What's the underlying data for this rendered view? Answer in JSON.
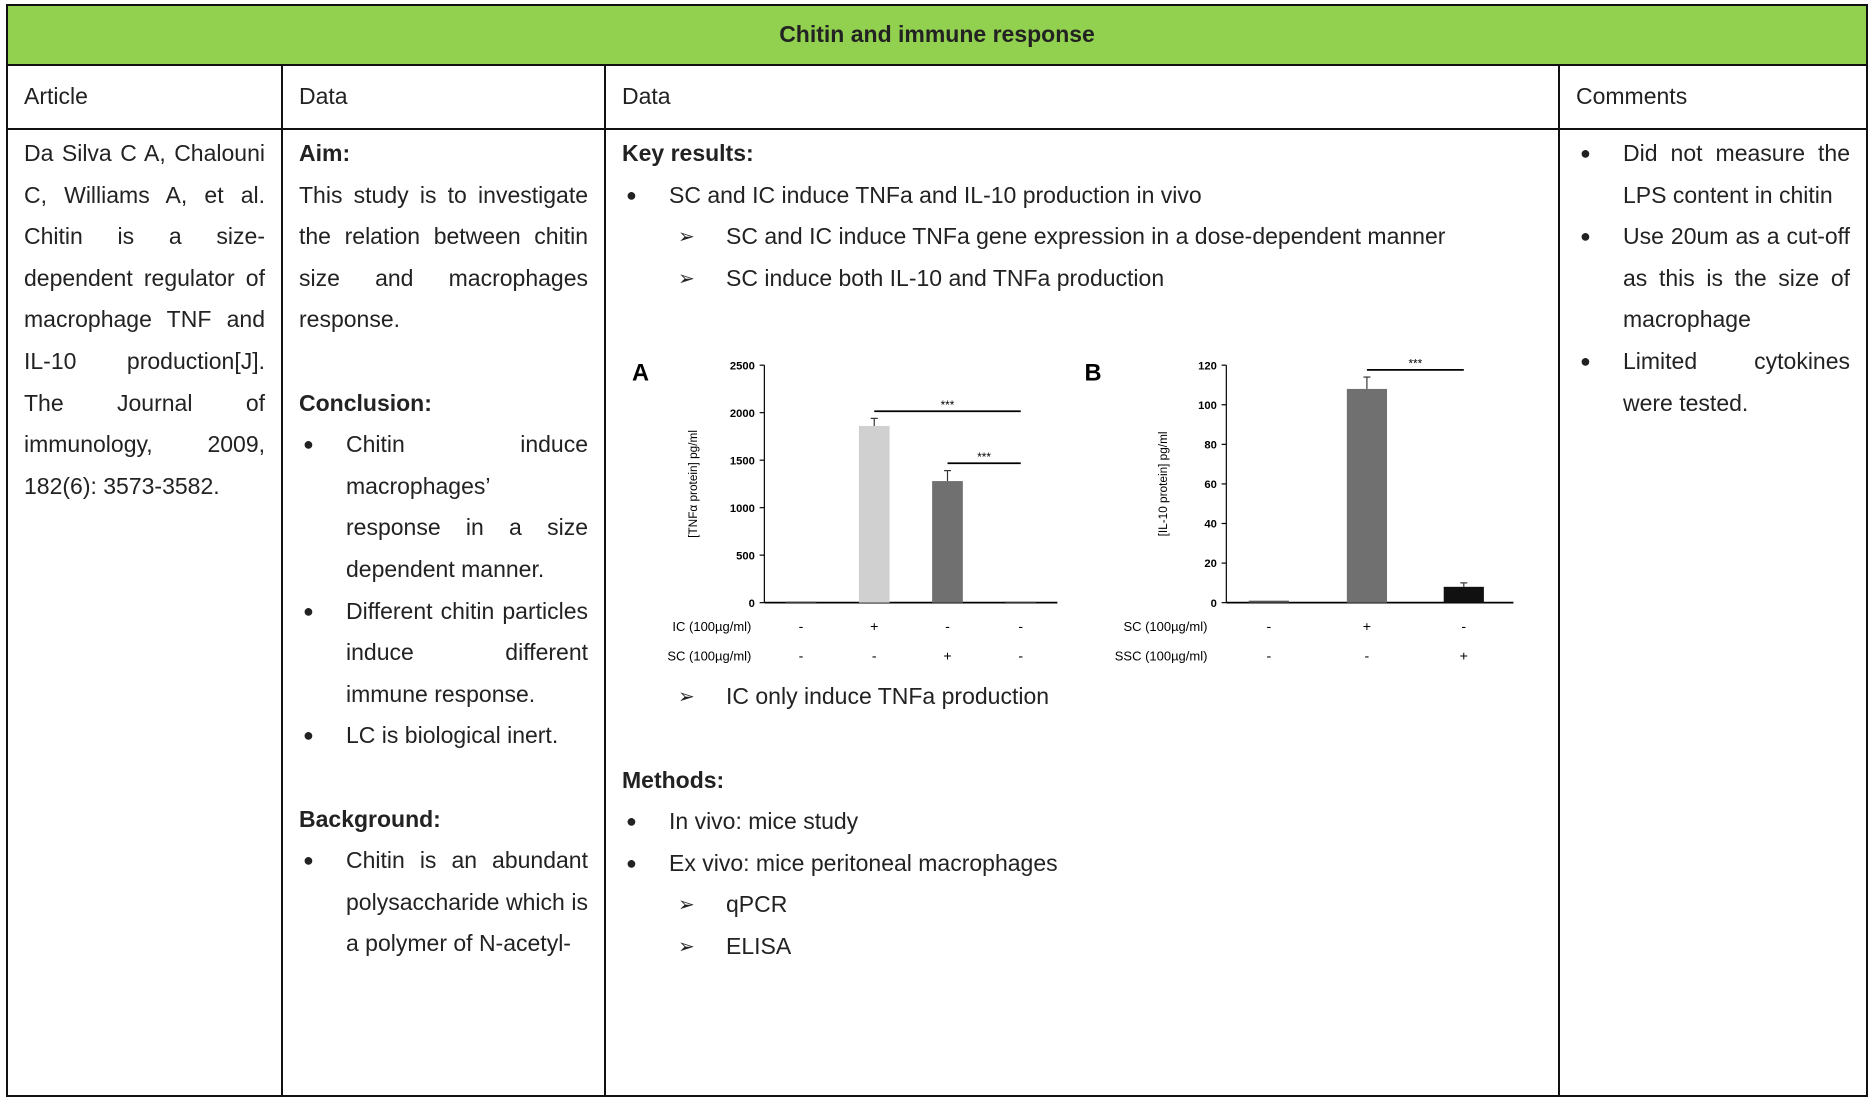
{
  "table": {
    "title": "Chitin and immune response",
    "headers": [
      "Article",
      "Data",
      "Data",
      "Comments"
    ],
    "article": "Da Silva C A, Chalouni C, Williams A, et al. Chitin is a size-dependent regulator of macrophage TNF and IL-10 production[J]. The Journal of immunology, 2009, 182(6): 3573-3582.",
    "aim_heading": "Aim:",
    "aim": "This study is to investigate the relation between chitin size and macrophages response.",
    "conclusion_heading": "Conclusion:",
    "conclusions": [
      "Chitin induce macrophages’ response in a size dependent manner.",
      "Different chitin particles induce different immune response.",
      "LC is biological inert."
    ],
    "background_heading": "Background:",
    "background": [
      "Chitin is an abundant polysaccharide which is a polymer of N-acetyl-"
    ],
    "key_results_heading": "Key results:",
    "key_results": [
      {
        "text": "SC and IC induce TNFa and IL-10 production in vivo",
        "sub": [
          "SC and IC induce TNFa gene expression in a dose-dependent manner",
          "SC induce both IL-10 and TNFa production"
        ]
      }
    ],
    "after_figures": [
      "IC only induce TNFa production"
    ],
    "methods_heading": "Methods:",
    "methods": [
      {
        "text": "In vivo: mice study"
      },
      {
        "text": "Ex vivo: mice peritoneal macrophages",
        "sub": [
          "qPCR",
          "ELISA"
        ]
      }
    ],
    "comments": [
      "Did not measure the LPS content in chitin",
      "Use 20um as a cut-off as this is the size of macrophage",
      "Limited cytokines were tested."
    ]
  },
  "figures": [
    {
      "type": "bar",
      "panel": "A",
      "ylabel": "[TNFα protein] pg/ml",
      "ylim": [
        0,
        2500
      ],
      "yticks": [
        0,
        500,
        1000,
        1500,
        2000,
        2500
      ],
      "conditions": [
        {
          "label": "IC (100µg/ml)",
          "marks": [
            "-",
            "+",
            "-",
            "-"
          ]
        },
        {
          "label": "SC (100µg/ml)",
          "marks": [
            "-",
            "-",
            "+",
            "-"
          ]
        }
      ],
      "values": [
        12,
        1860,
        1280,
        10
      ],
      "errors": [
        null,
        80,
        110,
        null
      ],
      "colors": [
        "#555555",
        "#d0d0d0",
        "#707070",
        "#555555"
      ],
      "significance": [
        "***",
        "***"
      ]
    },
    {
      "type": "bar",
      "panel": "B",
      "ylabel": "[IL-10 protein] pg/ml",
      "ylim": [
        0,
        120
      ],
      "yticks": [
        0,
        20,
        40,
        60,
        80,
        100,
        120
      ],
      "conditions": [
        {
          "label": "SC (100µg/ml)",
          "marks": [
            "-",
            "+",
            "-"
          ]
        },
        {
          "label": "SSC (100µg/ml)",
          "marks": [
            "-",
            "-",
            "+"
          ]
        }
      ],
      "values": [
        1,
        108,
        8
      ],
      "errors": [
        null,
        6,
        2
      ],
      "colors": [
        "#555555",
        "#707070",
        "#111111"
      ],
      "significance": [
        "***"
      ]
    }
  ]
}
